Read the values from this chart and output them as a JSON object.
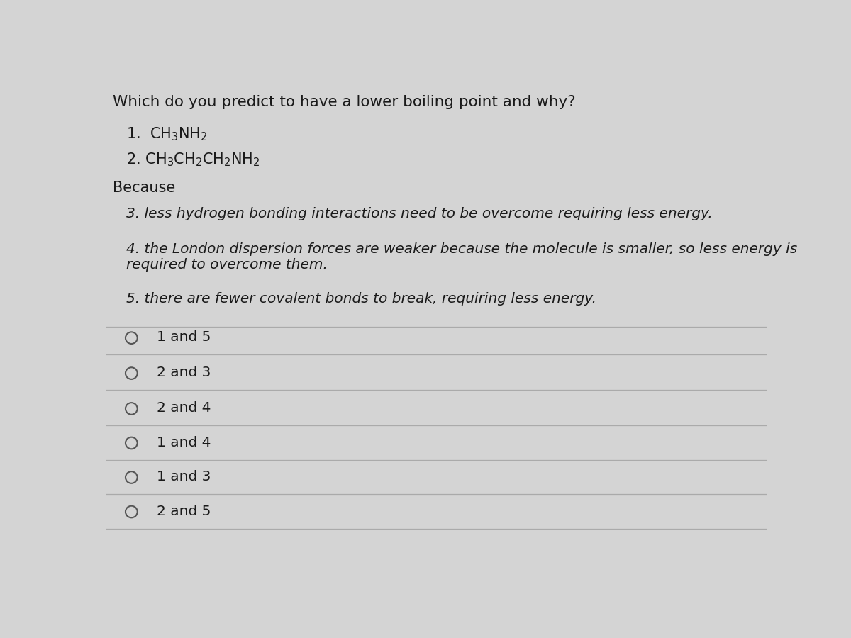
{
  "bg_color": "#d4d4d4",
  "text_color": "#1a1a1a",
  "question": "Which do you predict to have a lower boiling point and why?",
  "because_label": "Because",
  "reasons": [
    "3. less hydrogen bonding interactions need to be overcome requiring less energy.",
    "4. the London dispersion forces are weaker because the molecule is smaller, so less energy is\nrequired to overcome them.",
    "5. there are fewer covalent bonds to break, requiring less energy."
  ],
  "choices": [
    "1 and 5",
    "2 and 3",
    "2 and 4",
    "1 and 4",
    "1 and 3",
    "2 and 5"
  ],
  "divider_color": "#aaaaaa",
  "circle_color": "#555555",
  "mol1": "1.  CH$_3$NH$_2$",
  "mol2": "2. CH$_3$CH$_2$CH$_2$NH$_2$"
}
